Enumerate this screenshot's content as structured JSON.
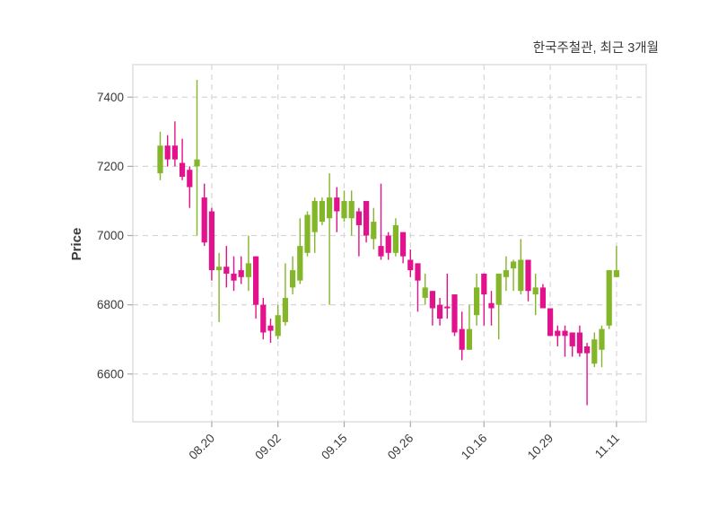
{
  "header": {
    "title": "한국주철관, 최근 3개월"
  },
  "chart_data": {
    "type": "candlestick",
    "title": "한국주철관, 최근 3개월",
    "ylabel": "Price",
    "ylim": [
      6462,
      7494
    ],
    "y_ticks": [
      6600,
      6800,
      7000,
      7200,
      7400
    ],
    "x_tick_labels": [
      "08.20",
      "09.02",
      "09.15",
      "09.26",
      "10.16",
      "10.29",
      "11.11"
    ],
    "x_tick_indices": [
      7,
      16,
      25,
      34,
      44,
      53,
      62
    ],
    "grid": "dashed",
    "legend": "none",
    "up_color": "#84b629",
    "down_color": "#e2128c",
    "grid_color": "#d6d6d6",
    "spine_color": "#dddddd",
    "tick_color": "#aaaaaa",
    "text_color": "#3a3a3a",
    "candles_ohlc": [
      [
        7180,
        7300,
        7160,
        7260
      ],
      [
        7260,
        7290,
        7200,
        7220
      ],
      [
        7260,
        7330,
        7200,
        7220
      ],
      [
        7210,
        7280,
        7160,
        7170
      ],
      [
        7190,
        7200,
        7080,
        7140
      ],
      [
        7200,
        7450,
        7000,
        7220
      ],
      [
        7110,
        7150,
        6970,
        6980
      ],
      [
        7070,
        7080,
        6870,
        6900
      ],
      [
        6900,
        6950,
        6750,
        6910
      ],
      [
        6910,
        6970,
        6850,
        6890
      ],
      [
        6890,
        6940,
        6840,
        6870
      ],
      [
        6900,
        6940,
        6860,
        6880
      ],
      [
        6880,
        7000,
        6840,
        6920
      ],
      [
        6940,
        6940,
        6760,
        6800
      ],
      [
        6800,
        6820,
        6700,
        6720
      ],
      [
        6740,
        6760,
        6690,
        6725
      ],
      [
        6710,
        6800,
        6700,
        6770
      ],
      [
        6750,
        6920,
        6740,
        6820
      ],
      [
        6850,
        6940,
        6830,
        6900
      ],
      [
        6870,
        7050,
        6860,
        6970
      ],
      [
        6950,
        7070,
        6940,
        7060
      ],
      [
        7010,
        7110,
        6950,
        7100
      ],
      [
        7040,
        7110,
        7030,
        7100
      ],
      [
        7050,
        7180,
        6800,
        7110
      ],
      [
        7110,
        7140,
        7010,
        7070
      ],
      [
        7050,
        7130,
        7040,
        7100
      ],
      [
        7050,
        7130,
        7000,
        7100
      ],
      [
        7070,
        7080,
        6940,
        7030
      ],
      [
        7100,
        7100,
        6980,
        7000
      ],
      [
        6990,
        7080,
        6960,
        7040
      ],
      [
        6970,
        7150,
        6930,
        6940
      ],
      [
        7000,
        7010,
        6930,
        6950
      ],
      [
        6950,
        7050,
        6940,
        7030
      ],
      [
        7010,
        7010,
        6920,
        6940
      ],
      [
        6930,
        6960,
        6880,
        6900
      ],
      [
        6920,
        6920,
        6780,
        6870
      ],
      [
        6820,
        6890,
        6800,
        6850
      ],
      [
        6840,
        6840,
        6740,
        6790
      ],
      [
        6800,
        6820,
        6740,
        6760
      ],
      [
        6795,
        6890,
        6760,
        6790
      ],
      [
        6830,
        6830,
        6710,
        6720
      ],
      [
        6730,
        6780,
        6640,
        6670
      ],
      [
        6670,
        6800,
        6670,
        6730
      ],
      [
        6770,
        6890,
        6740,
        6850
      ],
      [
        6890,
        6890,
        6740,
        6830
      ],
      [
        6805,
        6840,
        6740,
        6790
      ],
      [
        6800,
        6890,
        6700,
        6890
      ],
      [
        6880,
        6940,
        6840,
        6900
      ],
      [
        6905,
        6930,
        6840,
        6925
      ],
      [
        6840,
        6990,
        6830,
        6930
      ],
      [
        6930,
        6930,
        6810,
        6840
      ],
      [
        6830,
        6890,
        6770,
        6850
      ],
      [
        6850,
        6860,
        6790,
        6790
      ],
      [
        6790,
        6790,
        6710,
        6710
      ],
      [
        6725,
        6740,
        6680,
        6710
      ],
      [
        6725,
        6740,
        6650,
        6710
      ],
      [
        6720,
        6720,
        6650,
        6680
      ],
      [
        6720,
        6740,
        6650,
        6660
      ],
      [
        6680,
        6690,
        6510,
        6660
      ],
      [
        6630,
        6720,
        6620,
        6700
      ],
      [
        6670,
        6740,
        6620,
        6730
      ],
      [
        6740,
        6900,
        6730,
        6900
      ],
      [
        6880,
        6970,
        6880,
        6900
      ]
    ]
  }
}
